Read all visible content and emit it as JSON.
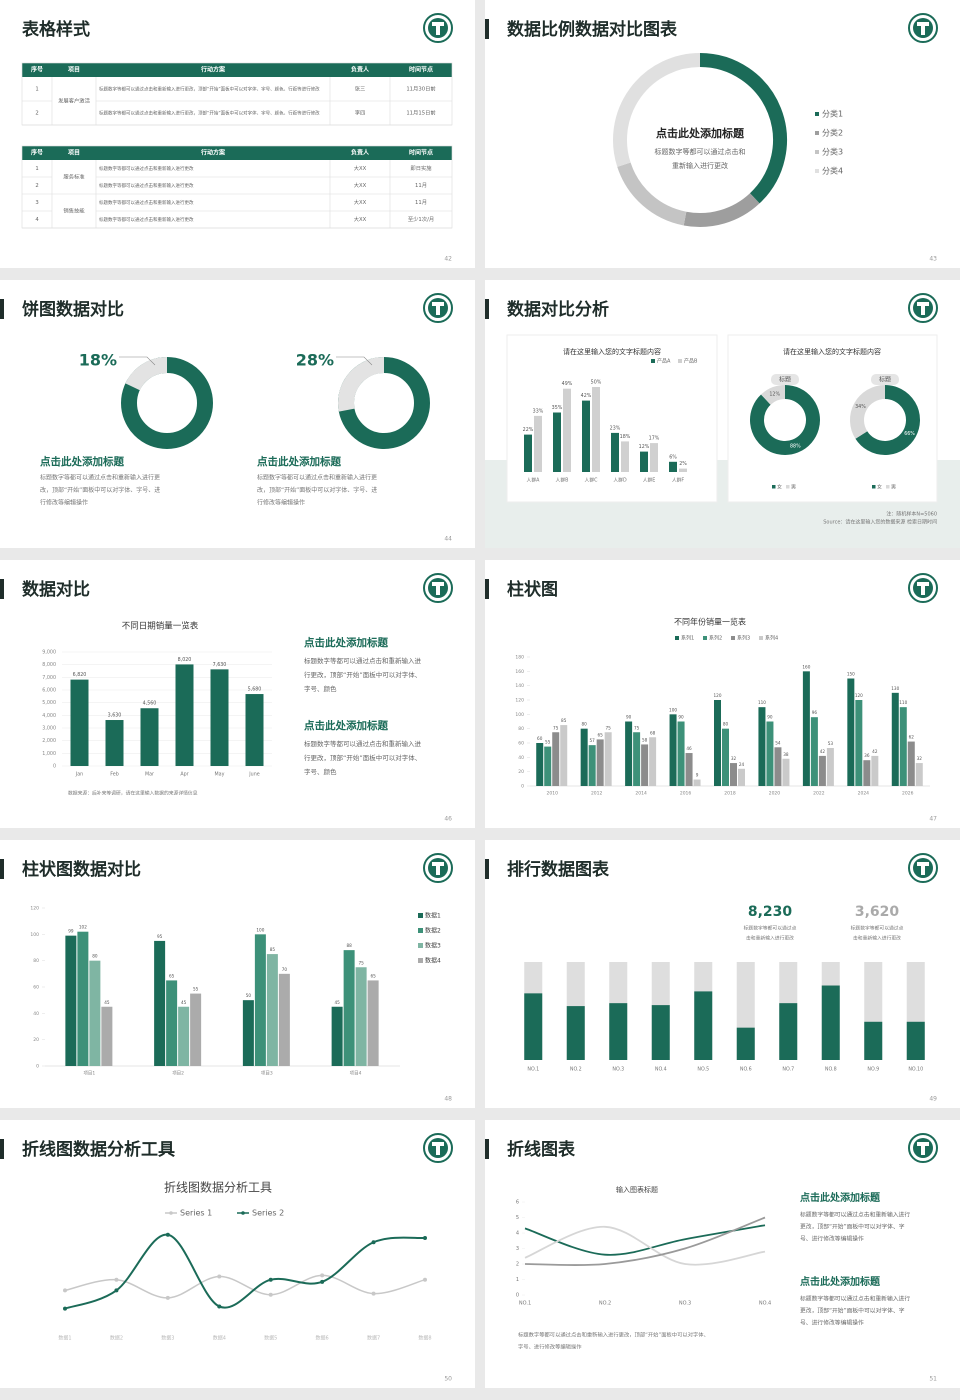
{
  "slides": [
    {
      "title": "表格样式",
      "page": 42,
      "tables": [
        {
          "header": [
            "序号",
            "项目",
            "行动方案",
            "负责人",
            "时间节点"
          ],
          "groups": [
            {
              "project": "发展客户激活",
              "rows": [
                [
                  "1",
                  "标题数字等都可以通过点击和重新输入进行更改，顶部“开始”面板中可以对字体、字号、颜色、行距等进行修改",
                  "张三",
                  "11月30日前"
                ],
                [
                  "2",
                  "标题数字等都可以通过点击和重新输入进行更改，顶部“开始”面板中可以对字体、字号、颜色、行距等进行修改",
                  "李四",
                  "11月15日前"
                ]
              ]
            }
          ]
        },
        {
          "header": [
            "序号",
            "项目",
            "行动方案",
            "负责人",
            "时间节点"
          ],
          "groups": [
            {
              "project": "服务标准",
              "rows": [
                [
                  "1",
                  "标题数字等都可以通过点击和重新输入进行更改",
                  "大XX",
                  "即日实施"
                ],
                [
                  "2",
                  "标题数字等都可以通过点击和重新输入进行更改",
                  "大XX",
                  "11月"
                ]
              ]
            },
            {
              "project": "销售技能",
              "rows": [
                [
                  "3",
                  "标题数字等都可以通过点击和重新输入进行更改",
                  "大XX",
                  "11月"
                ],
                [
                  "4",
                  "标题数字等都可以通过点击和重新输入进行更改",
                  "大XX",
                  "至少1次/月"
                ]
              ]
            }
          ]
        }
      ]
    },
    {
      "title": "数据比例数据对比图表",
      "page": 43,
      "chart": {
        "type": "donut",
        "heading": "点击此处添加标题",
        "lines": [
          "标题数字等都可以通过点击和",
          "重新输入进行更改"
        ],
        "categories": [
          "分类1",
          "分类2",
          "分类3",
          "分类4"
        ],
        "values": [
          38,
          15,
          17,
          30
        ],
        "colors": [
          "#1b6b58",
          "#9e9e9e",
          "#c4c4c4",
          "#e0e0e0"
        ]
      }
    },
    {
      "title": "饼图数据对比",
      "page": 44,
      "charts": [
        {
          "type": "donut",
          "values": [
            18
          ],
          "value_labels": [
            "18%"
          ],
          "heading": "点击此处添加标题",
          "lines": [
            "标题数字等都可以通过点击和重新输入进行更",
            "改，顶部“开始”面板中可以对字体、字号、进",
            "行修改等编辑操作"
          ]
        },
        {
          "type": "donut",
          "values": [
            28
          ],
          "value_labels": [
            "28%"
          ],
          "heading": "点击此处添加标题",
          "lines": [
            "标题数字等都可以通过点击和重新输入进行更",
            "改，顶部“开始”面板中可以对字体、字号、进",
            "行修改等编辑操作"
          ]
        }
      ]
    },
    {
      "title": "数据对比分析",
      "page": 45,
      "bar_card": {
        "type": "bar",
        "title": "请在这里输入您的文字标题内容",
        "categories": [
          "人群A",
          "人群B",
          "人群C",
          "人群D",
          "人群E",
          "人群F"
        ],
        "series": [
          {
            "name": "产品A",
            "color": "#1b6b58",
            "values": [
              22,
              35,
              42,
              23,
              12,
              6
            ],
            "value_labels": [
              "22%",
              "35%",
              "42%",
              "23%",
              "12%",
              "6%"
            ]
          },
          {
            "name": "产品B",
            "color": "#d0d0d0",
            "values": [
              33,
              49,
              50,
              18,
              17,
              2
            ],
            "value_labels": [
              "33%",
              "49%",
              "50%",
              "18%",
              "17%",
              "2%"
            ]
          }
        ]
      },
      "donut_card": {
        "type": "donut",
        "title": "请在这里输入您的文字标题内容",
        "legend": [
          "女",
          "男"
        ],
        "colors": [
          "#1b6b58",
          "#d9d9d9"
        ],
        "charts": [
          {
            "label": "标题",
            "values": [
              88,
              12
            ],
            "value_labels": [
              "88%",
              "12%"
            ]
          },
          {
            "label": "标题",
            "values": [
              66,
              34
            ],
            "value_labels": [
              "66%",
              "34%"
            ]
          }
        ]
      },
      "note": "注：随机样本N=5060",
      "source": "Source：请在这里输入您的数据来源 检索日期时间"
    },
    {
      "title": "数据对比",
      "page": 46,
      "chart": {
        "type": "bar",
        "title": "不同日期销量一览表",
        "categories": [
          "Jan",
          "Feb",
          "Mar",
          "Apr",
          "May",
          "June"
        ],
        "values": [
          6820,
          3630,
          4560,
          8020,
          7630,
          5680
        ],
        "value_labels": [
          "6,820",
          "3,630",
          "4,560",
          "8,020",
          "7,630",
          "5,680"
        ],
        "color": "#1b6b58",
        "ylim": [
          0,
          9000
        ],
        "yticks": [
          0,
          {
            "value": 1000,
            "label": "1,000"
          },
          {
            "value": 2000,
            "label": "2,000"
          },
          {
            "value": 3000,
            "label": "3,000"
          },
          {
            "value": 4000,
            "label": "4,000"
          },
          {
            "value": 5000,
            "label": "5,000"
          },
          {
            "value": 6000,
            "label": "6,000"
          },
          {
            "value": 7000,
            "label": "7,000"
          },
          {
            "value": 8000,
            "label": "8,000"
          },
          {
            "value": 9000,
            "label": "9,000"
          }
        ],
        "grid": true,
        "note": "数据来源：后补来等调研，请在这里输入数据的来源详情信息"
      },
      "blocks": [
        {
          "heading": "点击此处添加标题",
          "lines": [
            "标题数字等都可以通过点击和重新输入进",
            "行更改，顶部“开始”面板中可以对字体、",
            "字号、颜色"
          ]
        },
        {
          "heading": "点击此处添加标题",
          "lines": [
            "标题数字等都可以通过点击和重新输入进",
            "行更改，顶部“开始”面板中可以对字体、",
            "字号、颜色"
          ]
        }
      ]
    },
    {
      "title": "柱状图",
      "page": 47,
      "chart": {
        "type": "bar",
        "title": "不同年份销量一览表",
        "categories": [
          "2010",
          "2012",
          "2014",
          "2016",
          "2018",
          "2020",
          "2022",
          "2024",
          "2026"
        ],
        "series": [
          {
            "name": "系列1",
            "color": "#1b6b58",
            "values": [
              60,
              80,
              90,
              100,
              120,
              110,
              160,
              150,
              130
            ]
          },
          {
            "name": "系列2",
            "color": "#3d9179",
            "values": [
              55,
              57,
              75,
              90,
              80,
              90,
              96,
              120,
              110
            ]
          },
          {
            "name": "系列3",
            "color": "#8c8c8c",
            "values": [
              75,
              65,
              58,
              46,
              32,
              54,
              42,
              36,
              62
            ]
          },
          {
            "name": "系列4",
            "color": "#cacaca",
            "values": [
              85,
              75,
              68,
              9,
              24,
              38,
              53,
              42,
              32
            ]
          }
        ],
        "ylim": [
          0,
          180
        ],
        "yticks": [
          0,
          20,
          40,
          60,
          80,
          100,
          120,
          140,
          160,
          180
        ]
      }
    },
    {
      "title": "柱状图数据对比",
      "page": 48,
      "chart": {
        "type": "bar",
        "categories": [
          "项目1",
          "项目2",
          "项目3",
          "项目4"
        ],
        "series": [
          {
            "name": "数据1",
            "color": "#1b6b58",
            "values": [
              99,
              95,
              50,
              45
            ]
          },
          {
            "name": "数据2",
            "color": "#3d9179",
            "values": [
              102,
              65,
              100,
              88
            ]
          },
          {
            "name": "数据3",
            "color": "#7fb5a3",
            "values": [
              80,
              45,
              85,
              75
            ]
          },
          {
            "name": "数据4",
            "color": "#ababab",
            "values": [
              45,
              55,
              70,
              65
            ]
          }
        ],
        "ylim": [
          0,
          120
        ],
        "yticks": [
          0,
          20,
          40,
          60,
          80,
          100,
          120
        ]
      }
    },
    {
      "title": "排行数据图表",
      "page": 49,
      "stats": [
        {
          "value": "8,230",
          "lines": [
            "标题数字等都可以通过点",
            "击和重新输入进行更改"
          ]
        },
        {
          "value": "3,620",
          "lines": [
            "标题数字等都可以通过点",
            "击和重新输入进行更改"
          ]
        }
      ],
      "chart": {
        "type": "bar",
        "categories": [
          "NO.1",
          "NO.2",
          "NO.3",
          "NO.4",
          "NO.5",
          "NO.6",
          "NO.7",
          "NO.8",
          "NO.9",
          "NO.10"
        ],
        "values": [
          68,
          55,
          58,
          56,
          70,
          33,
          58,
          76,
          39,
          39
        ],
        "color": "#1b6b58",
        "ylim": [
          0,
          100
        ]
      }
    },
    {
      "title": "折线图数据分析工具",
      "page": 50,
      "chart": {
        "type": "line",
        "title": "折线图数据分析工具",
        "categories": [
          "数据1",
          "数据2",
          "数据3",
          "数据4",
          "数据5",
          "数据6",
          "数据7",
          "数据8"
        ],
        "series": [
          {
            "name": "Series 1",
            "color": "#c8c8c8",
            "values": [
              3.7,
              4.7,
              3.0,
              5.0,
              3.3,
              5.1,
              3.4,
              4.7
            ]
          },
          {
            "name": "Series 2",
            "color": "#1b6b58",
            "values": [
              2.0,
              3.7,
              8.9,
              2.2,
              4.7,
              4.5,
              8.2,
              8.6
            ]
          }
        ],
        "ylim": [
          0,
          10
        ]
      }
    },
    {
      "title": "折线图表",
      "page": 51,
      "chart": {
        "type": "line",
        "title": "输入图表标题",
        "categories": [
          "NO.1",
          "NO.2",
          "NO.3",
          "NO.4"
        ],
        "series": [
          {
            "color": "#1b6b58",
            "values": [
              4.3,
              2.6,
              3.6,
              4.5
            ]
          },
          {
            "color": "#d6d6d6",
            "values": [
              2.4,
              4.4,
              2.0,
              2.8
            ]
          },
          {
            "color": "#9a9a9a",
            "values": [
              2.0,
              2.0,
              3.0,
              5.0
            ]
          }
        ],
        "ylim": [
          0,
          6
        ],
        "yticks": [
          0,
          1,
          2,
          3,
          4,
          5,
          6
        ]
      },
      "blocks": [
        {
          "heading": "点击此处添加标题",
          "lines": [
            "标题数字等都可以通过点击和重新输入进行",
            "更改，顶部“开始”面板中可以对字体、字",
            "号、进行修改等编辑操作"
          ]
        },
        {
          "heading": "点击此处添加标题",
          "lines": [
            "标题数字等都可以通过点击和重新输入进行",
            "更改，顶部“开始”面板中可以对字体、字",
            "号、进行修改等编辑操作"
          ]
        }
      ],
      "bottom_lines": [
        "标题数字等都可以通过点击和重新输入进行更改，顶部“开始”面板中可以对字体、",
        "字号、进行修改等编辑操作"
      ]
    }
  ]
}
